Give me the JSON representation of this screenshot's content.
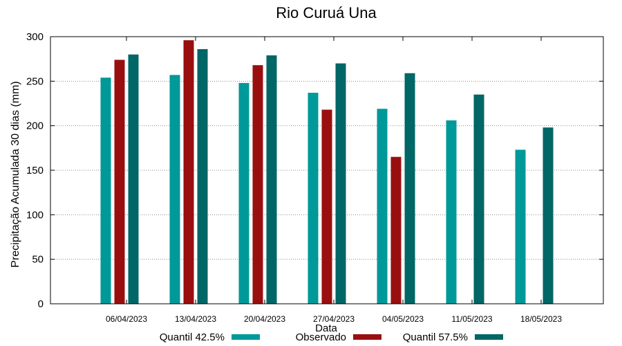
{
  "chart_data": {
    "type": "bar",
    "title": "Rio Curuá Una",
    "xlabel": "Data",
    "ylabel": "Precipitação Acumulada 30 dias (mm)",
    "ylim": [
      0,
      300
    ],
    "yticks": [
      0,
      50,
      100,
      150,
      200,
      250,
      300
    ],
    "grid": true,
    "legend_position": "bottom",
    "categories": [
      "06/04/2023",
      "13/04/2023",
      "20/04/2023",
      "27/04/2023",
      "04/05/2023",
      "11/05/2023",
      "18/05/2023"
    ],
    "series": [
      {
        "name": "Quantil 42.5%",
        "color": "#009999",
        "values": [
          254,
          257,
          248,
          237,
          219,
          206,
          173
        ]
      },
      {
        "name": "Observado",
        "color": "#990f0f",
        "values": [
          274,
          296,
          268,
          218,
          165,
          null,
          null
        ]
      },
      {
        "name": "Quantil 57.5%",
        "color": "#006666",
        "values": [
          280,
          286,
          279,
          270,
          259,
          235,
          198
        ]
      }
    ]
  }
}
